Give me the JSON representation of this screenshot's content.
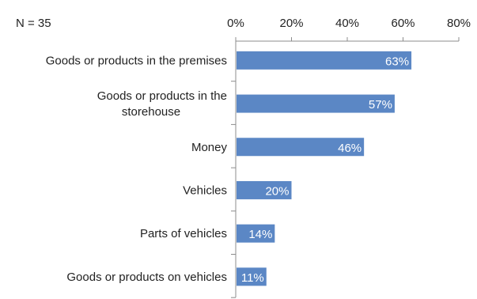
{
  "chart_data": {
    "type": "bar",
    "orientation": "horizontal",
    "note": "N = 35",
    "categories": [
      [
        "Goods or products in the premises"
      ],
      [
        "Goods or products in the",
        "storehouse"
      ],
      [
        "Money"
      ],
      [
        "Vehicles"
      ],
      [
        "Parts of vehicles"
      ],
      [
        "Goods or products on vehicles"
      ]
    ],
    "values": [
      63,
      57,
      46,
      20,
      14,
      11
    ],
    "data_labels": [
      "63%",
      "57%",
      "46%",
      "20%",
      "14%",
      "11%"
    ],
    "xlim": [
      0,
      80
    ],
    "xticks": [
      0,
      20,
      40,
      60,
      80
    ],
    "xtick_labels": [
      "0%",
      "20%",
      "40%",
      "60%",
      "80%"
    ],
    "axis_position": "top",
    "grid": false,
    "legend": "none",
    "bar_color": "#5b87c5",
    "label_color": "#ffffff"
  }
}
